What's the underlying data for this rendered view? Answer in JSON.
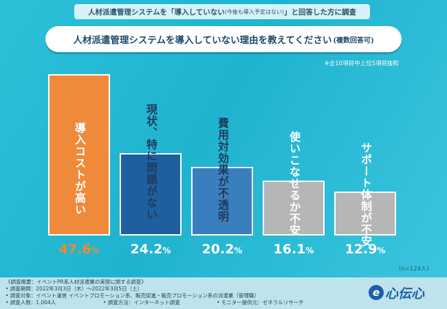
{
  "header": {
    "pre": "人材派遣管理システムを「導入していない",
    "small": "(今後も導入予定はない)",
    "post": "」と回答した方に調査"
  },
  "question": {
    "main": "人材派遣管理システムを導入していない理由を教えてください",
    "note": "(複数回答可)"
  },
  "sub_note": "※全10項目中上位5項目抜粋",
  "n_note": "(n=124人)",
  "chart_data": {
    "type": "bar",
    "categories": [
      "導入コストが高い",
      "現状、特に問題がない",
      "費用対効果が不透明",
      "使いこなせるか不安",
      "サポート体制が不安"
    ],
    "values": [
      47.6,
      24.2,
      20.2,
      16.1,
      12.9
    ],
    "value_labels": [
      "47.6",
      "24.2",
      "20.2",
      "16.1",
      "12.9"
    ],
    "unit": "%",
    "ylim": [
      0,
      50
    ],
    "colors": [
      "#ef8a3a",
      "#1e5fa0",
      "#3a7fbd",
      "#b6b6b6",
      "#b6b6b6"
    ],
    "label_colors": [
      "#ffffff",
      "#1e3a5c",
      "#1e3a5c",
      "#ffffff",
      "#ffffff"
    ]
  },
  "footer": {
    "line1": "《調査概要：イベントPR系人材派遣業の実態に関する調査》",
    "line2": "• 調査期間：2022年3月3日（木）〜2022年3月5日（土）",
    "line3": "• 調査対象：イベント運営 イベントプロモーション系、販売促進・販売プロモーション系の派遣業（管理職）",
    "line4a": "• 調査人数：1,004人",
    "line4b": "• 調査方法：インターネット調査",
    "line4c": "• モニター提供元：ゼネラルリサーチ"
  },
  "logo": {
    "mark": "e",
    "text": "心伝心"
  }
}
